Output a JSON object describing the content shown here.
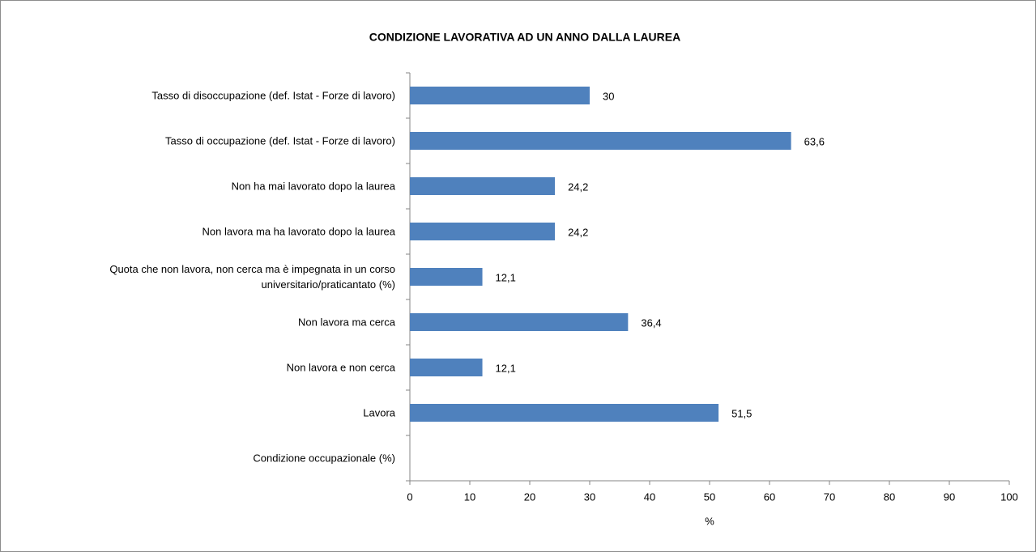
{
  "chart_data": {
    "type": "barh",
    "title": "CONDIZIONE LAVORATIVA AD UN ANNO DALLA LAUREA",
    "categories": [
      "Tasso di disoccupazione (def. Istat - Forze di lavoro)",
      "Tasso di occupazione (def. Istat - Forze di lavoro)",
      "Non ha mai lavorato dopo la laurea",
      "Non lavora ma ha lavorato dopo la laurea",
      "Quota che non lavora, non cerca ma è impegnata in un corso universitario/praticantato (%)",
      "Non lavora ma cerca",
      "Non lavora e non cerca",
      "Lavora",
      "Condizione occupazionale (%)"
    ],
    "values": [
      30,
      63.6,
      24.2,
      24.2,
      12.1,
      36.4,
      12.1,
      51.5,
      null
    ],
    "value_labels": [
      "30",
      "63,6",
      "24,2",
      "24,2",
      "12,1",
      "36,4",
      "12,1",
      "51,5",
      null
    ],
    "color": "#4f81bd",
    "xlabel": "%",
    "xlim": [
      0,
      100
    ],
    "xticks": [
      0,
      10,
      20,
      30,
      40,
      50,
      60,
      70,
      80,
      90,
      100
    ],
    "grid": false
  }
}
